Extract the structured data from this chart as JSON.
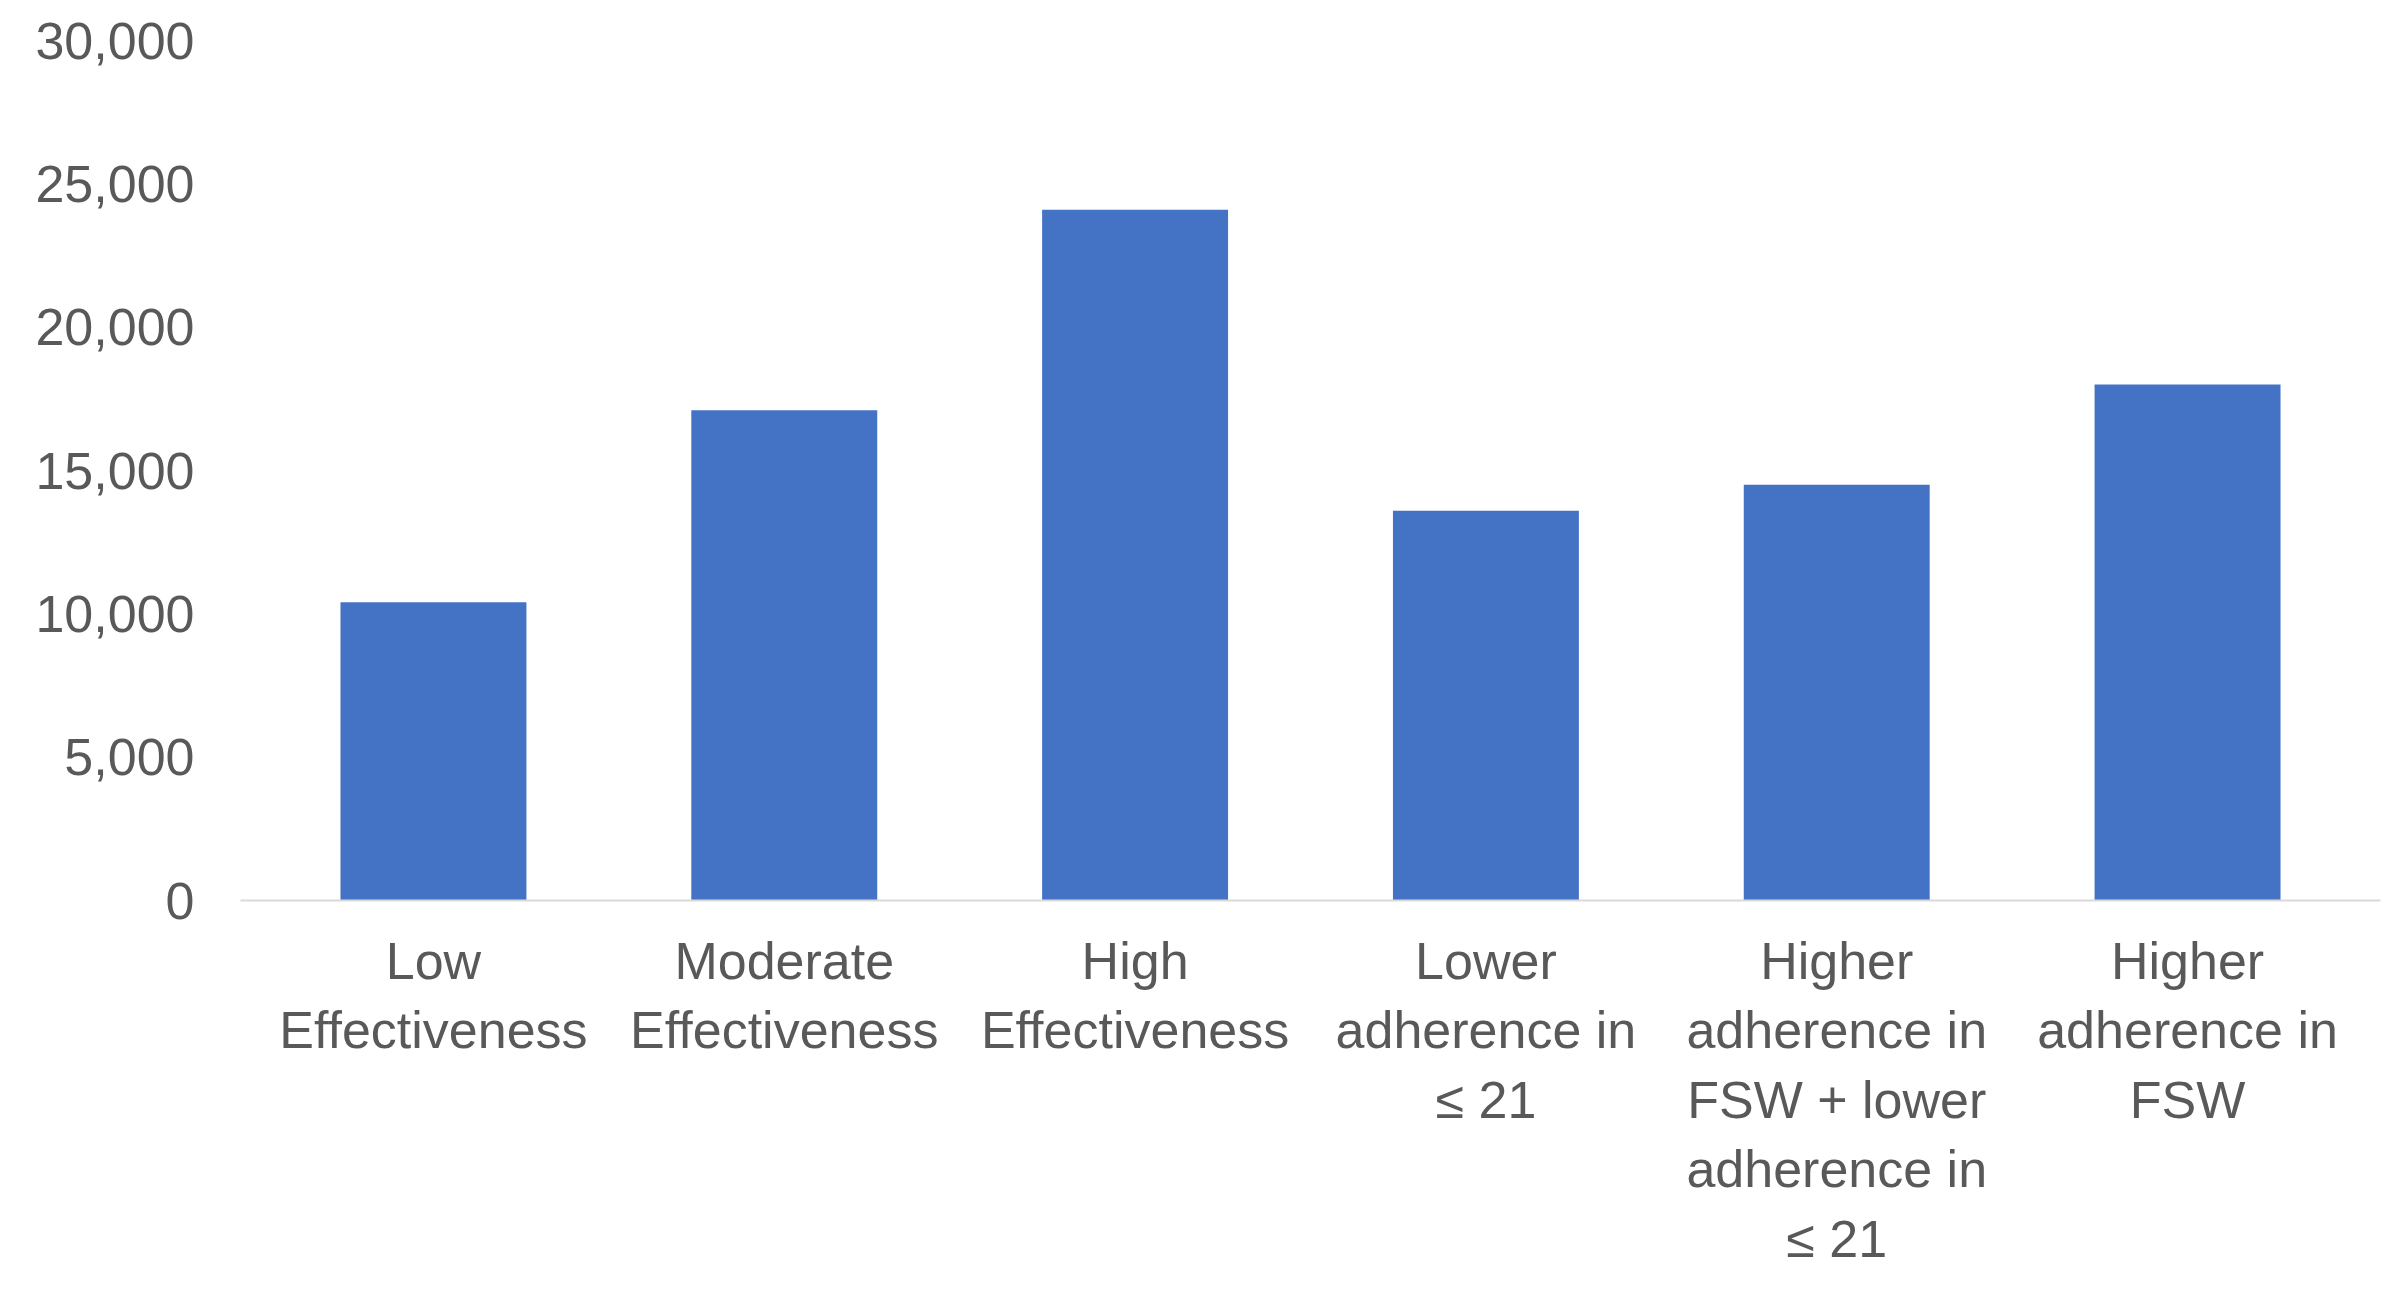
{
  "chart_data": {
    "type": "bar",
    "categories": [
      "Low Effectiveness",
      "Moderate Effectiveness",
      "High Effectiveness",
      "Lower adherence in ≤ 21",
      "Higher adherence in FSW + lower adherence in ≤ 21",
      "Higher adherence in FSW"
    ],
    "values": [
      10400,
      17100,
      24100,
      13600,
      14500,
      18000
    ],
    "color": "#4472c4",
    "ylim": [
      0,
      30000
    ],
    "yticks": [
      {
        "value": 0,
        "label": "0"
      },
      {
        "value": 5000,
        "label": "5,000"
      },
      {
        "value": 10000,
        "label": "10,000"
      },
      {
        "value": 15000,
        "label": "15,000"
      },
      {
        "value": 20000,
        "label": "20,000"
      },
      {
        "value": 25000,
        "label": "25,000"
      },
      {
        "value": 30000,
        "label": "30,000"
      }
    ],
    "grid": false
  }
}
